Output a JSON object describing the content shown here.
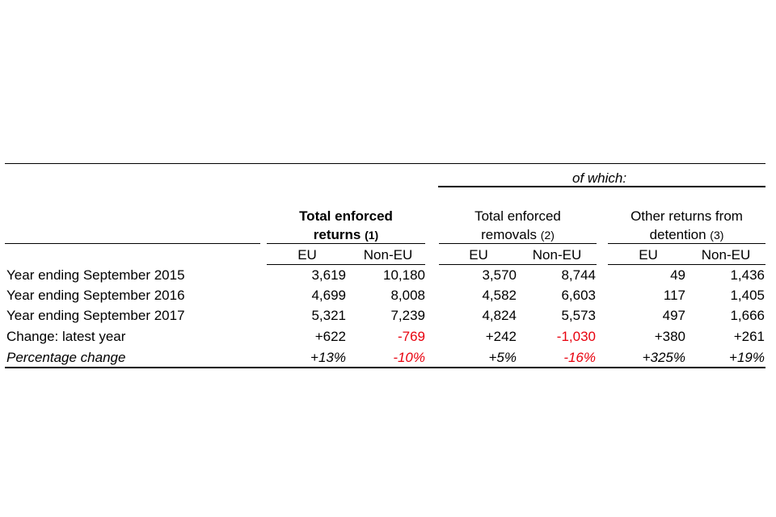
{
  "header": {
    "of_which": "of which:",
    "groups": [
      {
        "title_line1": "Total enforced",
        "title_line2": "returns",
        "note": "(1)"
      },
      {
        "title_line1": "Total enforced",
        "title_line2": "removals",
        "note": "(2)"
      },
      {
        "title_line1": "Other returns from",
        "title_line2": "detention",
        "note": "(3)"
      }
    ],
    "sub_eu": "EU",
    "sub_noneu": "Non-EU"
  },
  "rows": [
    {
      "label": "Year ending September 2015",
      "values": [
        "3,619",
        "10,180",
        "3,570",
        "8,744",
        "49",
        "1,436"
      ]
    },
    {
      "label": "Year ending September 2016",
      "values": [
        "4,699",
        "8,008",
        "4,582",
        "6,603",
        "117",
        "1,405"
      ]
    },
    {
      "label": "Year ending September 2017",
      "values": [
        "5,321",
        "7,239",
        "4,824",
        "5,573",
        "497",
        "1,666"
      ]
    },
    {
      "label": "Change: latest year",
      "values": [
        "+622",
        "-769",
        "+242",
        "-1,030",
        "+380",
        "+261"
      ]
    },
    {
      "label": "Percentage change",
      "values": [
        "+13%",
        "-10%",
        "+5%",
        "-16%",
        "+325%",
        "+19%"
      ]
    }
  ],
  "colors": {
    "text": "#000000",
    "negative": "#e8000d",
    "rule": "#000000"
  }
}
